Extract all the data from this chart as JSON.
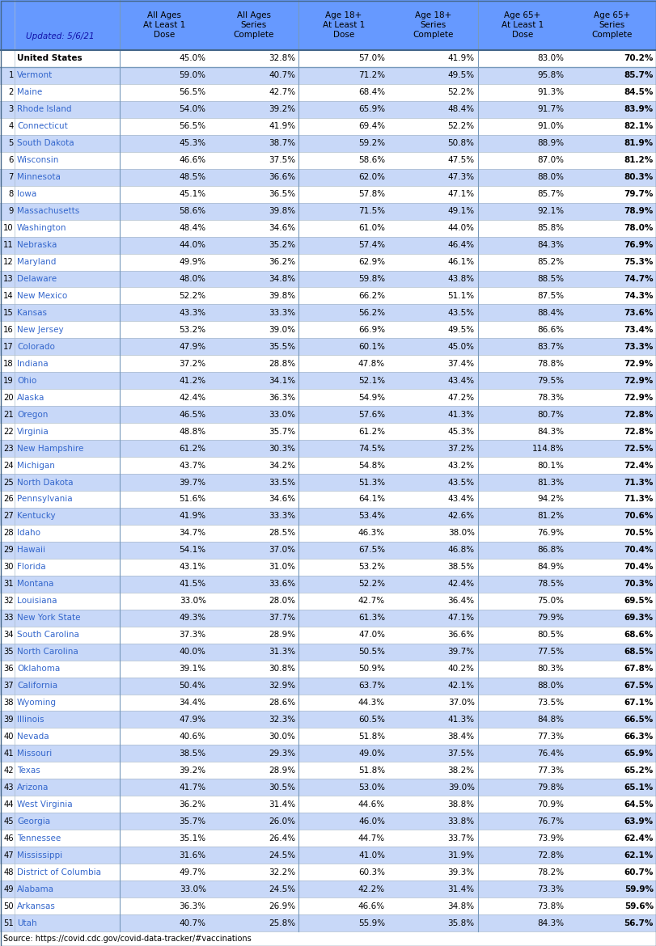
{
  "header_bg": "#6699FF",
  "state_color": "#3366CC",
  "row_bg_light": "#C8D8F8",
  "row_bg_white": "#FFFFFF",
  "updated_text": "Updated: 5/6/21",
  "source_text": "Source: https://covid.cdc.gov/covid-data-tracker/#vaccinations",
  "columns": [
    "All Ages\nAt Least 1\nDose",
    "All Ages\nSeries\nComplete",
    "Age 18+\nAt Least 1\nDose",
    "Age 18+\nSeries\nComplete",
    "Age 65+\nAt Least 1\nDose",
    "Age 65+\nSeries\nComplete"
  ],
  "rows": [
    {
      "rank": "",
      "state": "United States",
      "values": [
        "45.0%",
        "32.8%",
        "57.0%",
        "41.9%",
        "83.0%",
        "70.2%"
      ],
      "us": true
    },
    {
      "rank": "1",
      "state": "Vermont",
      "values": [
        "59.0%",
        "40.7%",
        "71.2%",
        "49.5%",
        "95.8%",
        "85.7%"
      ],
      "us": false
    },
    {
      "rank": "2",
      "state": "Maine",
      "values": [
        "56.5%",
        "42.7%",
        "68.4%",
        "52.2%",
        "91.3%",
        "84.5%"
      ],
      "us": false
    },
    {
      "rank": "3",
      "state": "Rhode Island",
      "values": [
        "54.0%",
        "39.2%",
        "65.9%",
        "48.4%",
        "91.7%",
        "83.9%"
      ],
      "us": false
    },
    {
      "rank": "4",
      "state": "Connecticut",
      "values": [
        "56.5%",
        "41.9%",
        "69.4%",
        "52.2%",
        "91.0%",
        "82.1%"
      ],
      "us": false
    },
    {
      "rank": "5",
      "state": "South Dakota",
      "values": [
        "45.3%",
        "38.7%",
        "59.2%",
        "50.8%",
        "88.9%",
        "81.9%"
      ],
      "us": false
    },
    {
      "rank": "6",
      "state": "Wisconsin",
      "values": [
        "46.6%",
        "37.5%",
        "58.6%",
        "47.5%",
        "87.0%",
        "81.2%"
      ],
      "us": false
    },
    {
      "rank": "7",
      "state": "Minnesota",
      "values": [
        "48.5%",
        "36.6%",
        "62.0%",
        "47.3%",
        "88.0%",
        "80.3%"
      ],
      "us": false
    },
    {
      "rank": "8",
      "state": "Iowa",
      "values": [
        "45.1%",
        "36.5%",
        "57.8%",
        "47.1%",
        "85.7%",
        "79.7%"
      ],
      "us": false
    },
    {
      "rank": "9",
      "state": "Massachusetts",
      "values": [
        "58.6%",
        "39.8%",
        "71.5%",
        "49.1%",
        "92.1%",
        "78.9%"
      ],
      "us": false
    },
    {
      "rank": "10",
      "state": "Washington",
      "values": [
        "48.4%",
        "34.6%",
        "61.0%",
        "44.0%",
        "85.8%",
        "78.0%"
      ],
      "us": false
    },
    {
      "rank": "11",
      "state": "Nebraska",
      "values": [
        "44.0%",
        "35.2%",
        "57.4%",
        "46.4%",
        "84.3%",
        "76.9%"
      ],
      "us": false
    },
    {
      "rank": "12",
      "state": "Maryland",
      "values": [
        "49.9%",
        "36.2%",
        "62.9%",
        "46.1%",
        "85.2%",
        "75.3%"
      ],
      "us": false
    },
    {
      "rank": "13",
      "state": "Delaware",
      "values": [
        "48.0%",
        "34.8%",
        "59.8%",
        "43.8%",
        "88.5%",
        "74.7%"
      ],
      "us": false
    },
    {
      "rank": "14",
      "state": "New Mexico",
      "values": [
        "52.2%",
        "39.8%",
        "66.2%",
        "51.1%",
        "87.5%",
        "74.3%"
      ],
      "us": false
    },
    {
      "rank": "15",
      "state": "Kansas",
      "values": [
        "43.3%",
        "33.3%",
        "56.2%",
        "43.5%",
        "88.4%",
        "73.6%"
      ],
      "us": false
    },
    {
      "rank": "16",
      "state": "New Jersey",
      "values": [
        "53.2%",
        "39.0%",
        "66.9%",
        "49.5%",
        "86.6%",
        "73.4%"
      ],
      "us": false
    },
    {
      "rank": "17",
      "state": "Colorado",
      "values": [
        "47.9%",
        "35.5%",
        "60.1%",
        "45.0%",
        "83.7%",
        "73.3%"
      ],
      "us": false
    },
    {
      "rank": "18",
      "state": "Indiana",
      "values": [
        "37.2%",
        "28.8%",
        "47.8%",
        "37.4%",
        "78.8%",
        "72.9%"
      ],
      "us": false
    },
    {
      "rank": "19",
      "state": "Ohio",
      "values": [
        "41.2%",
        "34.1%",
        "52.1%",
        "43.4%",
        "79.5%",
        "72.9%"
      ],
      "us": false
    },
    {
      "rank": "20",
      "state": "Alaska",
      "values": [
        "42.4%",
        "36.3%",
        "54.9%",
        "47.2%",
        "78.3%",
        "72.9%"
      ],
      "us": false
    },
    {
      "rank": "21",
      "state": "Oregon",
      "values": [
        "46.5%",
        "33.0%",
        "57.6%",
        "41.3%",
        "80.7%",
        "72.8%"
      ],
      "us": false
    },
    {
      "rank": "22",
      "state": "Virginia",
      "values": [
        "48.8%",
        "35.7%",
        "61.2%",
        "45.3%",
        "84.3%",
        "72.8%"
      ],
      "us": false
    },
    {
      "rank": "23",
      "state": "New Hampshire",
      "values": [
        "61.2%",
        "30.3%",
        "74.5%",
        "37.2%",
        "114.8%",
        "72.5%"
      ],
      "us": false
    },
    {
      "rank": "24",
      "state": "Michigan",
      "values": [
        "43.7%",
        "34.2%",
        "54.8%",
        "43.2%",
        "80.1%",
        "72.4%"
      ],
      "us": false
    },
    {
      "rank": "25",
      "state": "North Dakota",
      "values": [
        "39.7%",
        "33.5%",
        "51.3%",
        "43.5%",
        "81.3%",
        "71.3%"
      ],
      "us": false
    },
    {
      "rank": "26",
      "state": "Pennsylvania",
      "values": [
        "51.6%",
        "34.6%",
        "64.1%",
        "43.4%",
        "94.2%",
        "71.3%"
      ],
      "us": false
    },
    {
      "rank": "27",
      "state": "Kentucky",
      "values": [
        "41.9%",
        "33.3%",
        "53.4%",
        "42.6%",
        "81.2%",
        "70.6%"
      ],
      "us": false
    },
    {
      "rank": "28",
      "state": "Idaho",
      "values": [
        "34.7%",
        "28.5%",
        "46.3%",
        "38.0%",
        "76.9%",
        "70.5%"
      ],
      "us": false
    },
    {
      "rank": "29",
      "state": "Hawaii",
      "values": [
        "54.1%",
        "37.0%",
        "67.5%",
        "46.8%",
        "86.8%",
        "70.4%"
      ],
      "us": false
    },
    {
      "rank": "30",
      "state": "Florida",
      "values": [
        "43.1%",
        "31.0%",
        "53.2%",
        "38.5%",
        "84.9%",
        "70.4%"
      ],
      "us": false
    },
    {
      "rank": "31",
      "state": "Montana",
      "values": [
        "41.5%",
        "33.6%",
        "52.2%",
        "42.4%",
        "78.5%",
        "70.3%"
      ],
      "us": false
    },
    {
      "rank": "32",
      "state": "Louisiana",
      "values": [
        "33.0%",
        "28.0%",
        "42.7%",
        "36.4%",
        "75.0%",
        "69.5%"
      ],
      "us": false
    },
    {
      "rank": "33",
      "state": "New York State",
      "values": [
        "49.3%",
        "37.7%",
        "61.3%",
        "47.1%",
        "79.9%",
        "69.3%"
      ],
      "us": false
    },
    {
      "rank": "34",
      "state": "South Carolina",
      "values": [
        "37.3%",
        "28.9%",
        "47.0%",
        "36.6%",
        "80.5%",
        "68.6%"
      ],
      "us": false
    },
    {
      "rank": "35",
      "state": "North Carolina",
      "values": [
        "40.0%",
        "31.3%",
        "50.5%",
        "39.7%",
        "77.5%",
        "68.5%"
      ],
      "us": false
    },
    {
      "rank": "36",
      "state": "Oklahoma",
      "values": [
        "39.1%",
        "30.8%",
        "50.9%",
        "40.2%",
        "80.3%",
        "67.8%"
      ],
      "us": false
    },
    {
      "rank": "37",
      "state": "California",
      "values": [
        "50.4%",
        "32.9%",
        "63.7%",
        "42.1%",
        "88.0%",
        "67.5%"
      ],
      "us": false
    },
    {
      "rank": "38",
      "state": "Wyoming",
      "values": [
        "34.4%",
        "28.6%",
        "44.3%",
        "37.0%",
        "73.5%",
        "67.1%"
      ],
      "us": false
    },
    {
      "rank": "39",
      "state": "Illinois",
      "values": [
        "47.9%",
        "32.3%",
        "60.5%",
        "41.3%",
        "84.8%",
        "66.5%"
      ],
      "us": false
    },
    {
      "rank": "40",
      "state": "Nevada",
      "values": [
        "40.6%",
        "30.0%",
        "51.8%",
        "38.4%",
        "77.3%",
        "66.3%"
      ],
      "us": false
    },
    {
      "rank": "41",
      "state": "Missouri",
      "values": [
        "38.5%",
        "29.3%",
        "49.0%",
        "37.5%",
        "76.4%",
        "65.9%"
      ],
      "us": false
    },
    {
      "rank": "42",
      "state": "Texas",
      "values": [
        "39.2%",
        "28.9%",
        "51.8%",
        "38.2%",
        "77.3%",
        "65.2%"
      ],
      "us": false
    },
    {
      "rank": "43",
      "state": "Arizona",
      "values": [
        "41.7%",
        "30.5%",
        "53.0%",
        "39.0%",
        "79.8%",
        "65.1%"
      ],
      "us": false
    },
    {
      "rank": "44",
      "state": "West Virginia",
      "values": [
        "36.2%",
        "31.4%",
        "44.6%",
        "38.8%",
        "70.9%",
        "64.5%"
      ],
      "us": false
    },
    {
      "rank": "45",
      "state": "Georgia",
      "values": [
        "35.7%",
        "26.0%",
        "46.0%",
        "33.8%",
        "76.7%",
        "63.9%"
      ],
      "us": false
    },
    {
      "rank": "46",
      "state": "Tennessee",
      "values": [
        "35.1%",
        "26.4%",
        "44.7%",
        "33.7%",
        "73.9%",
        "62.4%"
      ],
      "us": false
    },
    {
      "rank": "47",
      "state": "Mississippi",
      "values": [
        "31.6%",
        "24.5%",
        "41.0%",
        "31.9%",
        "72.8%",
        "62.1%"
      ],
      "us": false
    },
    {
      "rank": "48",
      "state": "District of Columbia",
      "values": [
        "49.7%",
        "32.2%",
        "60.3%",
        "39.3%",
        "78.2%",
        "60.7%"
      ],
      "us": false
    },
    {
      "rank": "49",
      "state": "Alabama",
      "values": [
        "33.0%",
        "24.5%",
        "42.2%",
        "31.4%",
        "73.3%",
        "59.9%"
      ],
      "us": false
    },
    {
      "rank": "50",
      "state": "Arkansas",
      "values": [
        "36.3%",
        "26.9%",
        "46.6%",
        "34.8%",
        "73.8%",
        "59.6%"
      ],
      "us": false
    },
    {
      "rank": "51",
      "state": "Utah",
      "values": [
        "40.7%",
        "25.8%",
        "55.9%",
        "35.8%",
        "84.3%",
        "56.7%"
      ],
      "us": false
    }
  ]
}
